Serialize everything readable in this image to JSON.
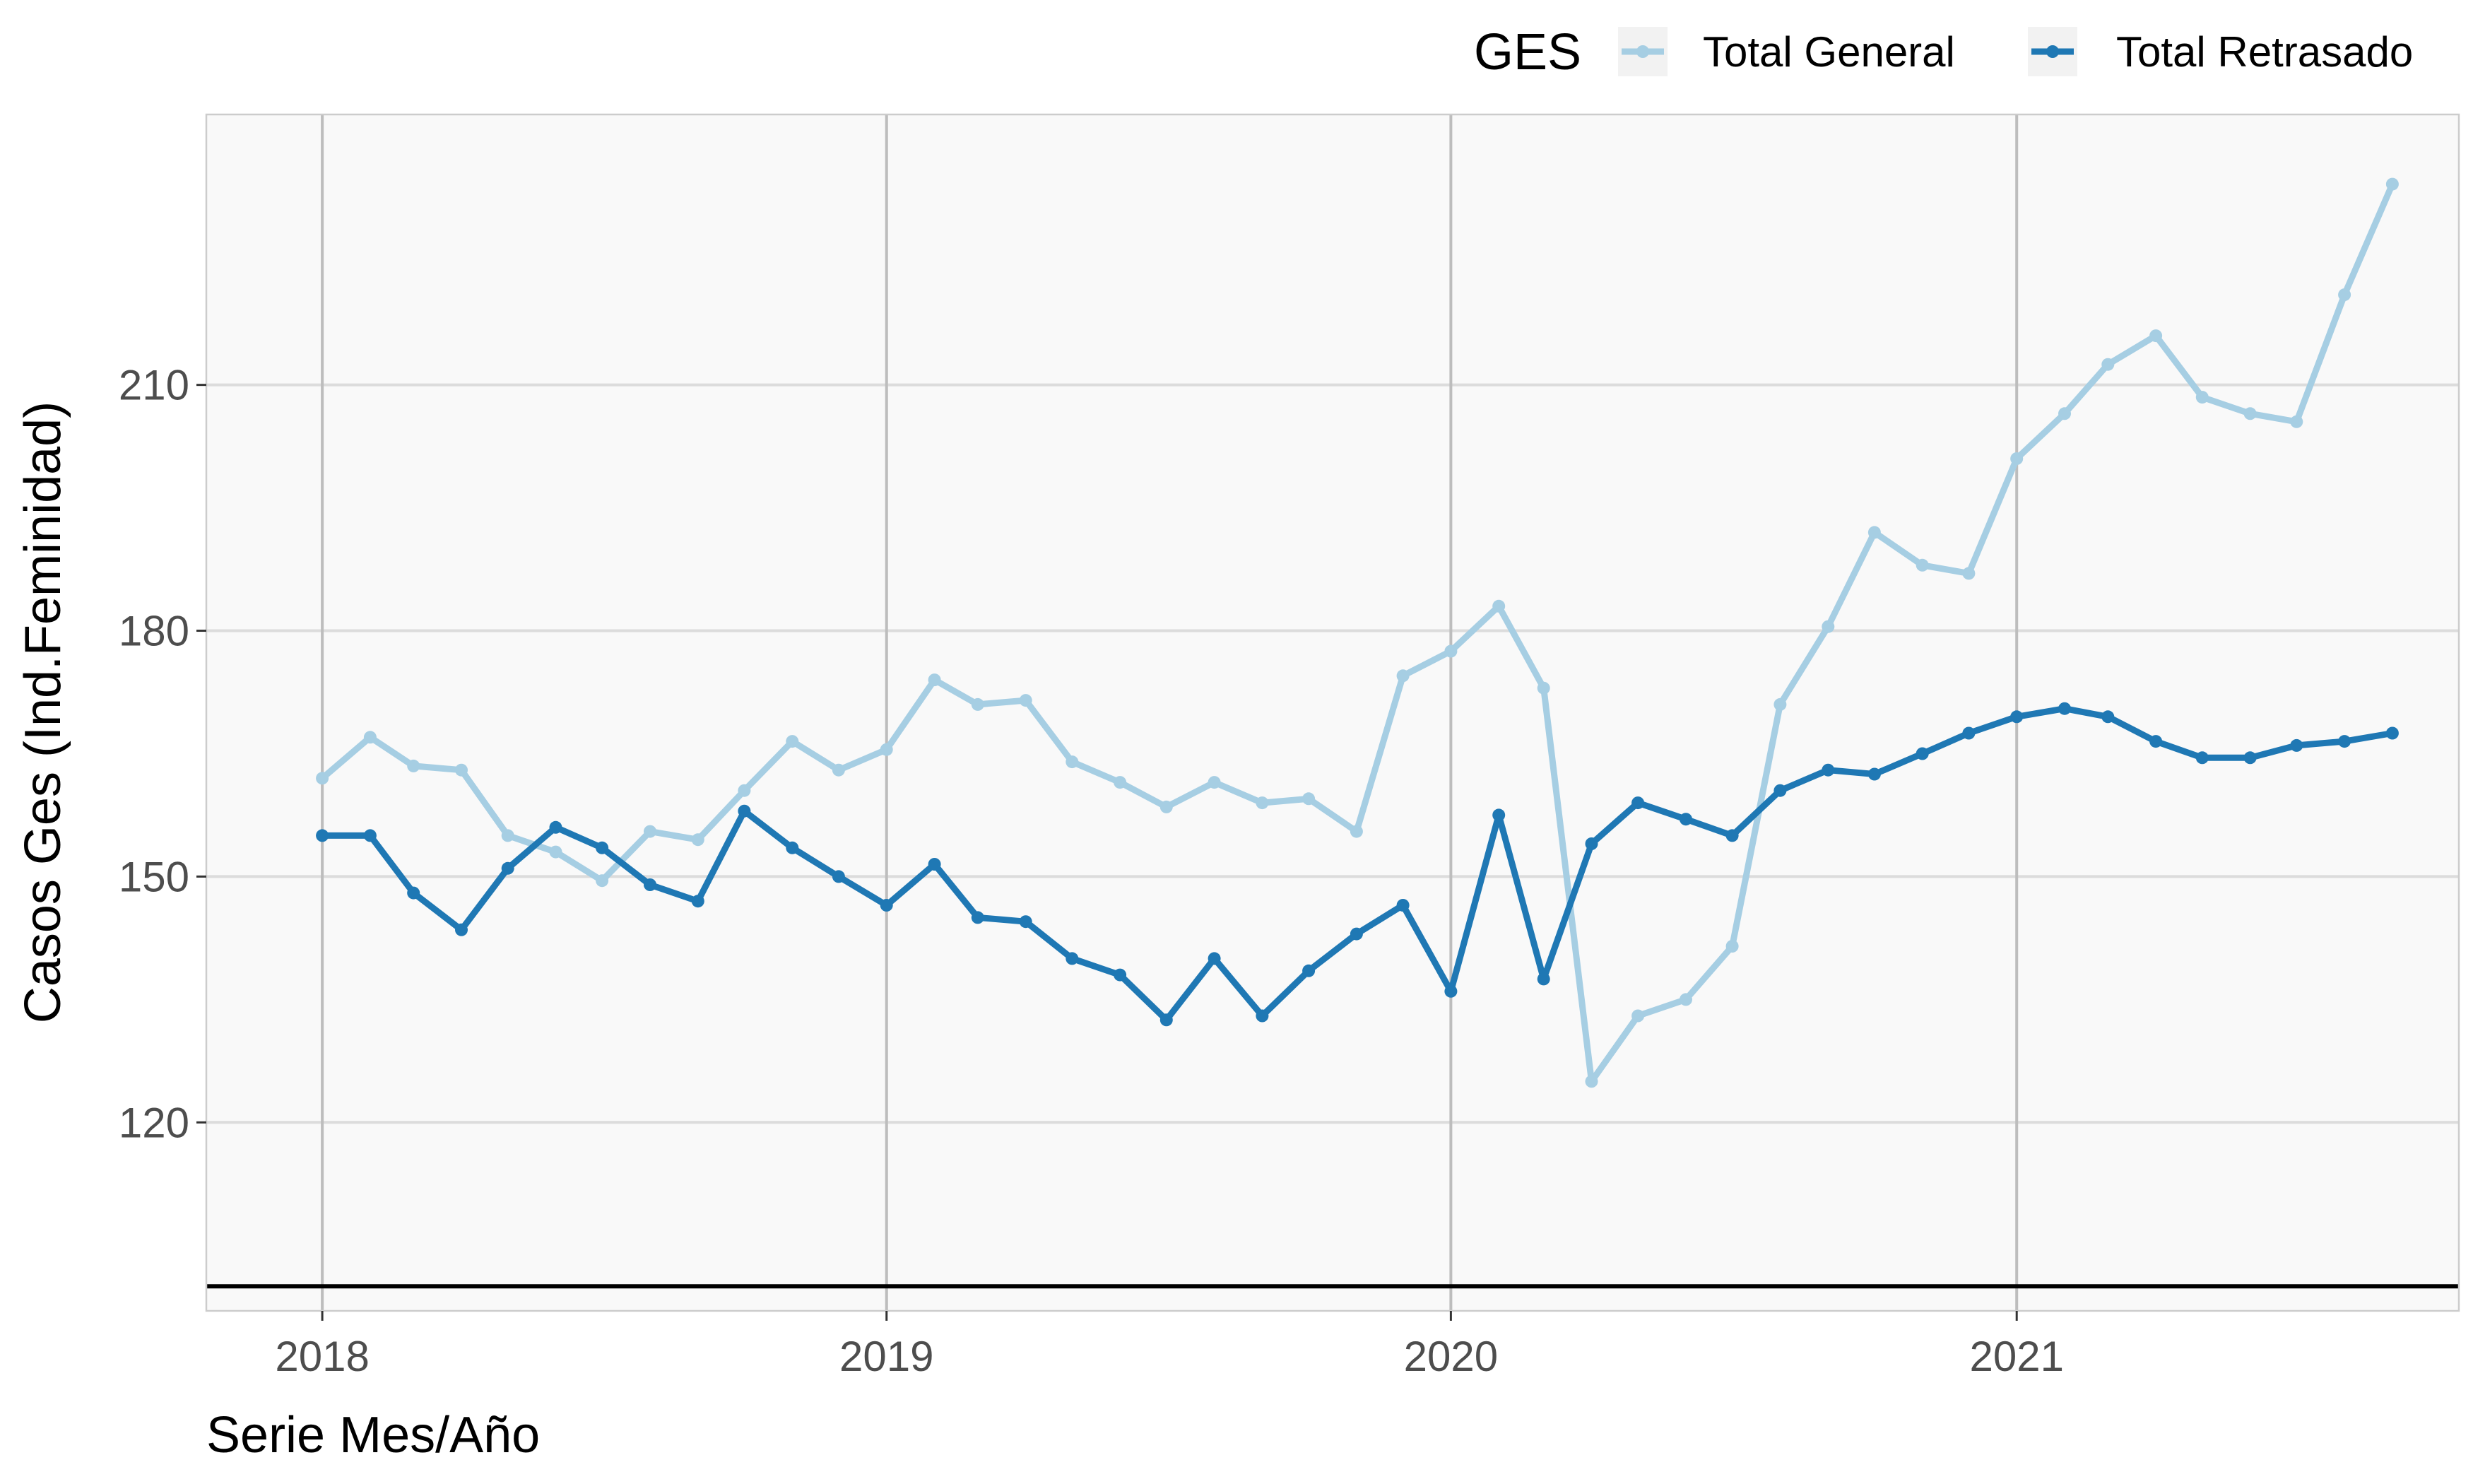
{
  "chart_data": {
    "type": "line",
    "xlabel": "Serie Mes/Año",
    "ylabel": "Casos Ges (Ind.Feminidad)",
    "x_ticks": [
      "2018",
      "2019",
      "2020",
      "2021"
    ],
    "y_ticks": [
      120,
      150,
      180,
      210
    ],
    "ylim": [
      97,
      243
    ],
    "xlim": [
      "2017-10-18",
      "2021-10-14"
    ],
    "reference_line_y": 100,
    "grid": true,
    "legend": {
      "title": "GES",
      "position": "top-right",
      "entries": [
        "Total General",
        "Total Retrasado"
      ]
    },
    "x": [
      "2018-01",
      "2018-02",
      "2018-03",
      "2018-04",
      "2018-05",
      "2018-06",
      "2018-07",
      "2018-08",
      "2018-09",
      "2018-10",
      "2018-11",
      "2018-12",
      "2019-01",
      "2019-02",
      "2019-03",
      "2019-04",
      "2019-05",
      "2019-06",
      "2019-07",
      "2019-08",
      "2019-09",
      "2019-10",
      "2019-11",
      "2019-12",
      "2020-01",
      "2020-02",
      "2020-03",
      "2020-04",
      "2020-05",
      "2020-06",
      "2020-07",
      "2020-08",
      "2020-09",
      "2020-10",
      "2020-11",
      "2020-12",
      "2021-01",
      "2021-02",
      "2021-03",
      "2021-04",
      "2021-05",
      "2021-06",
      "2021-07",
      "2021-08",
      "2021-09"
    ],
    "series": [
      {
        "name": "Total General",
        "color": "#a6cee3",
        "values": [
          162,
          167,
          163.5,
          163,
          155,
          153,
          149.5,
          155.5,
          154.5,
          160.5,
          166.5,
          163,
          165.5,
          174,
          171,
          171.5,
          164,
          161.5,
          158.5,
          161.5,
          159,
          159.5,
          155.5,
          174.5,
          177.5,
          183,
          173,
          125,
          133,
          135,
          141.5,
          171,
          180.5,
          192,
          188,
          187,
          201,
          206.5,
          212.5,
          216,
          208.5,
          206.5,
          205.5,
          221,
          234.5
        ]
      },
      {
        "name": "Total Retrasado",
        "color": "#1f78b4",
        "values": [
          155,
          155,
          148,
          143.5,
          151,
          156,
          153.5,
          149,
          147,
          158,
          153.5,
          150,
          146.5,
          151.5,
          145,
          144.5,
          140,
          138,
          132.5,
          140,
          133,
          138.5,
          143,
          146.5,
          136,
          157.5,
          137.5,
          154,
          159,
          157,
          155,
          160.5,
          163,
          162.5,
          165,
          167.5,
          169.5,
          170.5,
          169.5,
          166.5,
          164.5,
          164.5,
          166,
          166.5,
          167.5
        ]
      }
    ]
  }
}
